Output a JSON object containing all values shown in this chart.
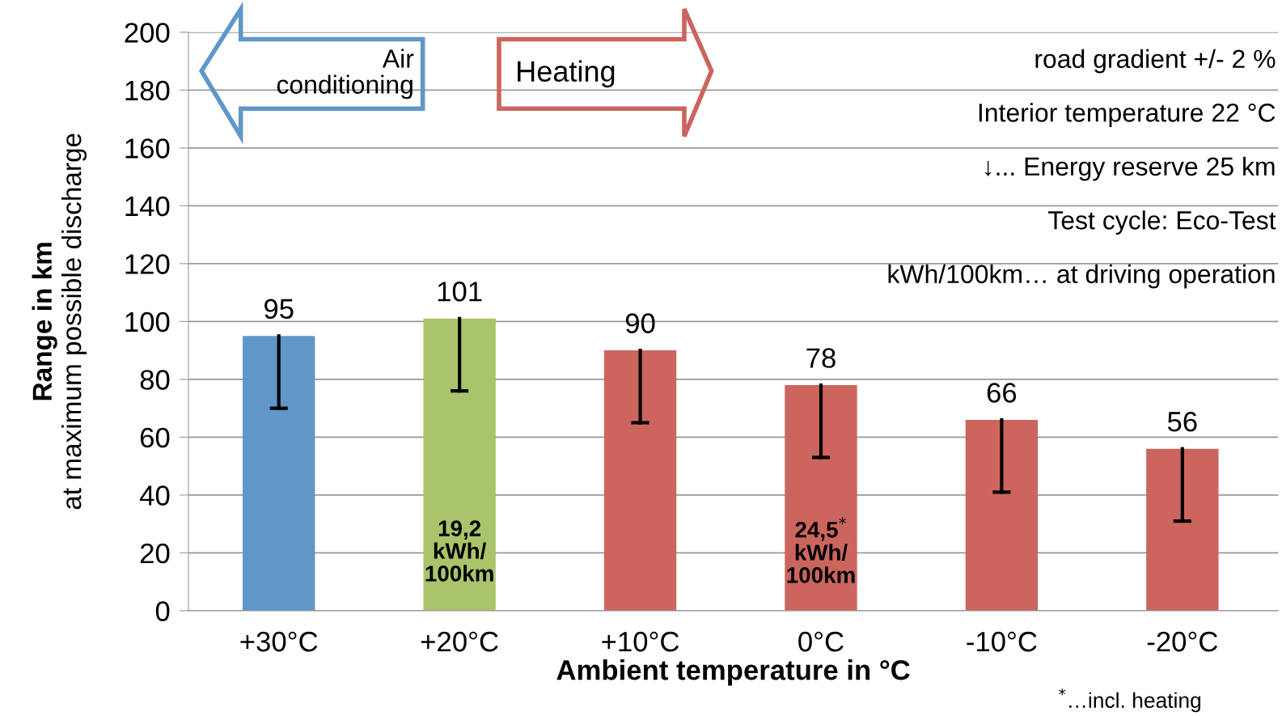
{
  "chart_data": {
    "type": "bar",
    "categories": [
      "+30°C",
      "+20°C",
      "+10°C",
      "0°C",
      "-10°C",
      "-20°C"
    ],
    "values": [
      95,
      101,
      90,
      78,
      66,
      56
    ],
    "colors": [
      "#6096c8",
      "#a9c46a",
      "#cc655e",
      "#cc655e",
      "#cc655e",
      "#cc655e"
    ],
    "errors": [
      [
        70,
        95
      ],
      [
        76,
        101
      ],
      [
        65,
        90
      ],
      [
        53,
        78
      ],
      [
        41,
        66
      ],
      [
        31,
        56
      ]
    ],
    "xlabel": "Ambient temperature in °C",
    "ylabel": "Range in km\nat maximum possible discharge",
    "ylim": [
      0,
      200
    ],
    "yticks": [
      0,
      20,
      40,
      60,
      80,
      100,
      120,
      140,
      160,
      180,
      200
    ],
    "grid": "y",
    "data_labels": true,
    "annotations": [
      "Air\nconditioning",
      "Heating",
      "road gradient +/- 2 %",
      "Interior temperature 22 °C",
      "↓... Energy reserve 25 km",
      "Test cycle: Eco-Test",
      "kWh/100km… at driving operation",
      "19,2\nkWh/\n100km",
      "24,5$^{*}$\nkWh/\n100km",
      "$^{*}$…incl. heating"
    ]
  }
}
